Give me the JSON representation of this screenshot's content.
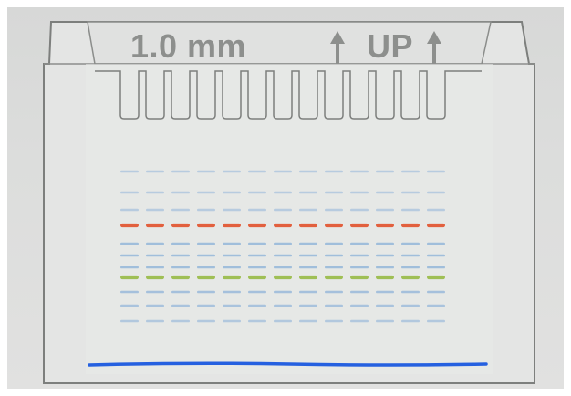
{
  "gel": {
    "thickness_label": "1.0 mm",
    "orientation_label": "UP",
    "lanes": 13,
    "colors": {
      "background": "#dcdcdb",
      "plate": "#e6e7e6",
      "outline": "#7d7f7d",
      "text": "#8d8f8d",
      "band_blue": "#8fb3d8",
      "band_red": "#e2603e",
      "band_green": "#9fbf55",
      "dye_front": "#2560e0"
    },
    "bands": [
      {
        "color": "blue",
        "intensity": 0.55
      },
      {
        "color": "blue",
        "intensity": 0.55
      },
      {
        "color": "blue",
        "intensity": 0.55
      },
      {
        "color": "red",
        "intensity": 1.0
      },
      {
        "color": "blue",
        "intensity": 0.8
      },
      {
        "color": "blue",
        "intensity": 0.8
      },
      {
        "color": "blue",
        "intensity": 0.8
      },
      {
        "color": "green",
        "intensity": 1.0
      },
      {
        "color": "blue",
        "intensity": 0.75
      },
      {
        "color": "blue",
        "intensity": 0.7
      },
      {
        "color": "blue",
        "intensity": 0.6
      }
    ]
  }
}
